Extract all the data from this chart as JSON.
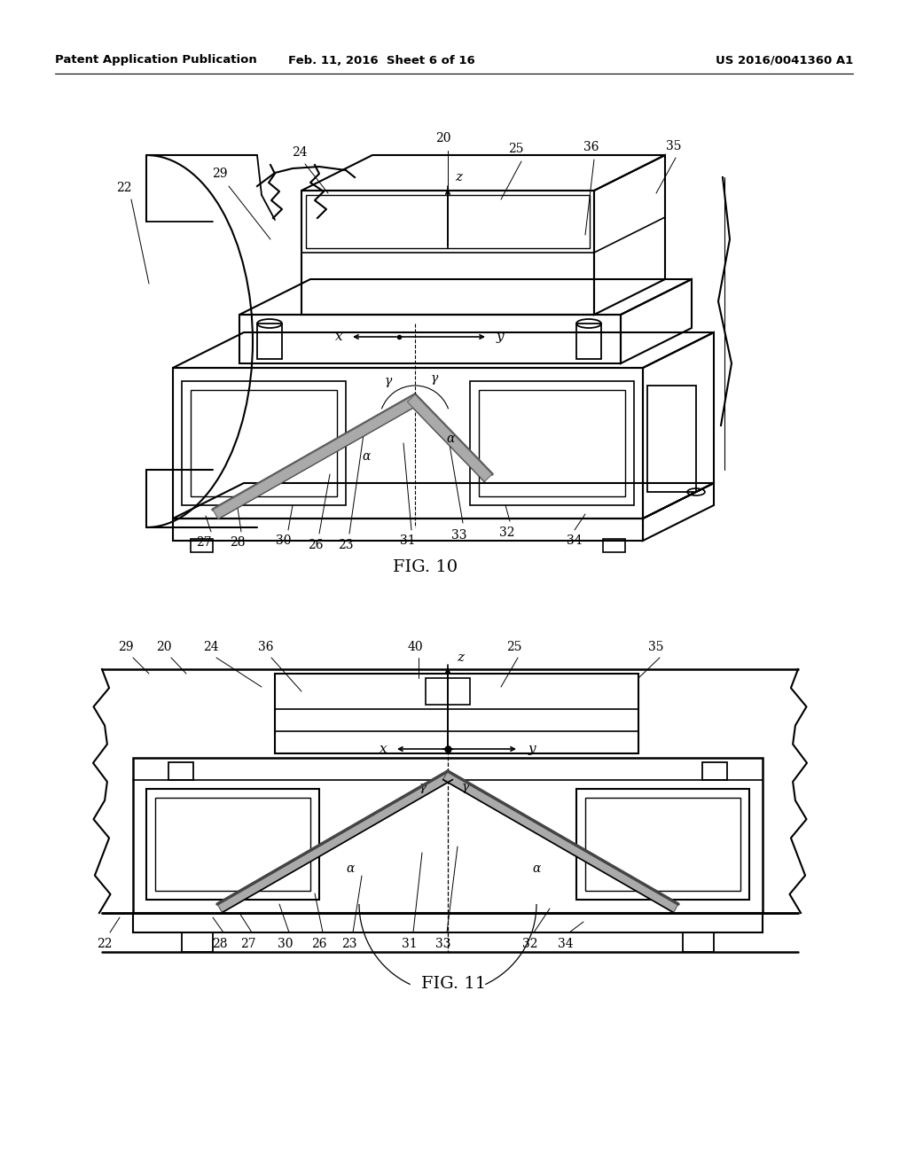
{
  "bg_color": "#ffffff",
  "lc": "#000000",
  "header_left": "Patent Application Publication",
  "header_mid": "Feb. 11, 2016  Sheet 6 of 16",
  "header_right": "US 2016/0041360 A1",
  "fig10_caption": "FIG. 10",
  "fig11_caption": "FIG. 11"
}
